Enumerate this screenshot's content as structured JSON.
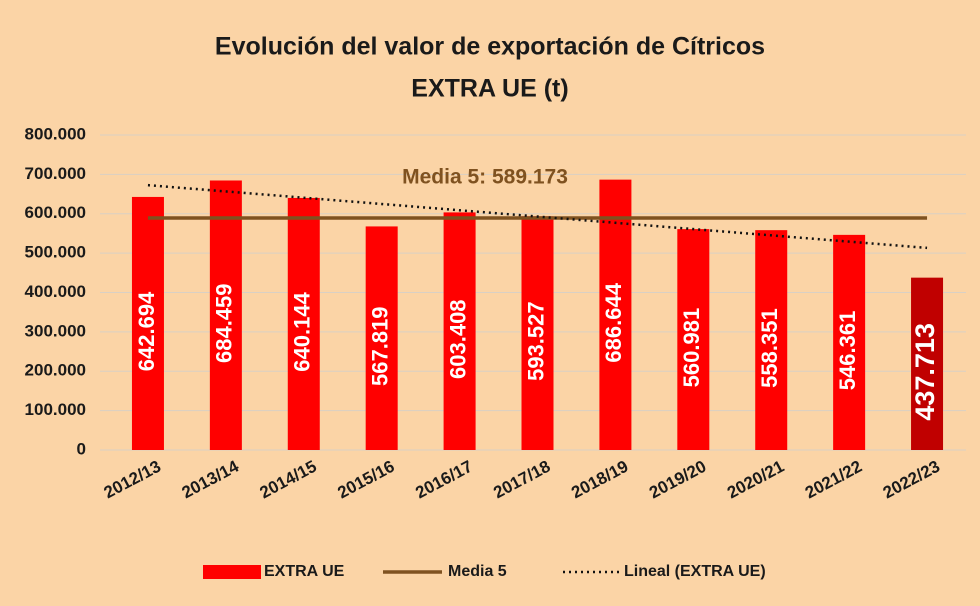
{
  "chart_data": {
    "type": "bar",
    "title": "Evolución del valor de exportación de Cítricos",
    "subtitle": "EXTRA UE (t)",
    "categories": [
      "2012/13",
      "2013/14",
      "2014/15",
      "2015/16",
      "2016/17",
      "2017/18",
      "2018/19",
      "2019/20",
      "2020/21",
      "2021/22",
      "2022/23"
    ],
    "series": [
      {
        "name": "EXTRA UE",
        "color": "#ff0000",
        "colors": [
          "#ff0000",
          "#ff0000",
          "#ff0000",
          "#ff0000",
          "#ff0000",
          "#ff0000",
          "#ff0000",
          "#ff0000",
          "#ff0000",
          "#ff0000",
          "#c00000"
        ],
        "values": [
          642694,
          684459,
          640144,
          567819,
          603408,
          593527,
          686644,
          560981,
          558351,
          546361,
          437713
        ],
        "value_labels": [
          "642.694",
          "684.459",
          "640.144",
          "567.819",
          "603.408",
          "593.527",
          "686.644",
          "560.981",
          "558.351",
          "546.361",
          "437.713"
        ]
      }
    ],
    "mean_line": {
      "name": "Media 5",
      "color": "#7f5220",
      "value": 589173,
      "label": "Media 5: 589.173"
    },
    "trend_line": {
      "name": "Lineal (EXTRA UE)",
      "color": "#111111",
      "values": [
        672605,
        513231
      ]
    },
    "ylim": [
      0,
      800000
    ],
    "yticks": [
      0,
      {
        "value": 100000,
        "label": "100.000"
      },
      {
        "value": 200000,
        "label": "200.000"
      },
      {
        "value": 300000,
        "label": "300.000"
      },
      {
        "value": 400000,
        "label": "400.000"
      },
      {
        "value": 500000,
        "label": "500.000"
      },
      {
        "value": 600000,
        "label": "600.000"
      },
      {
        "value": 700000,
        "label": "700.000"
      },
      {
        "value": 800000,
        "label": "800.000"
      }
    ],
    "grid": true,
    "legend": "bottom"
  }
}
